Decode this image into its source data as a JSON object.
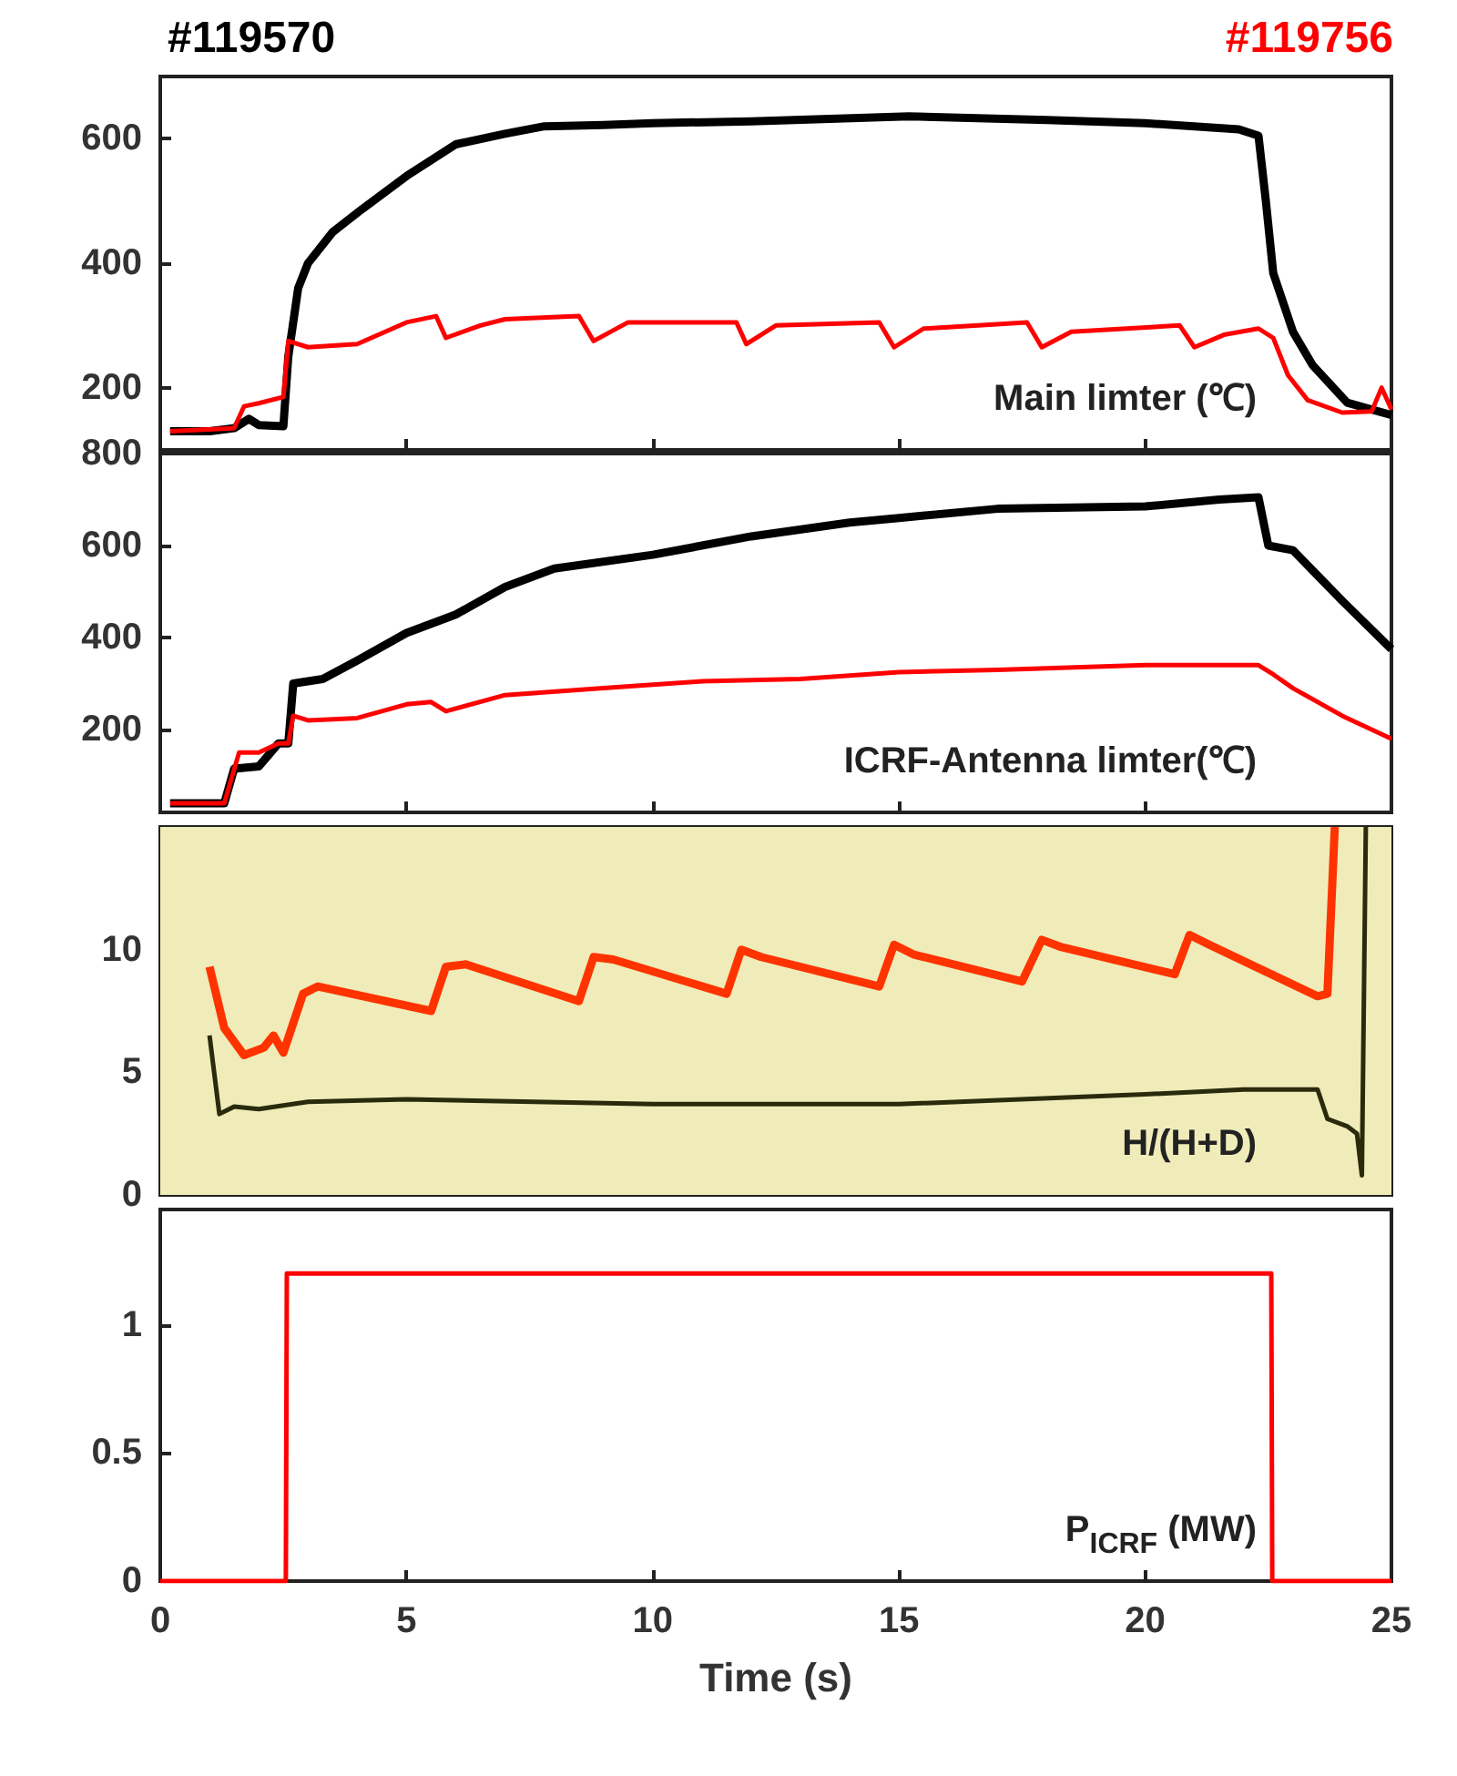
{
  "chart_data": [
    {
      "type": "line",
      "xlim": [
        0,
        25
      ],
      "xticks": [
        0,
        5,
        10,
        15,
        20,
        25
      ],
      "ylim": [
        100,
        700
      ],
      "yticks": [
        200,
        400,
        600
      ],
      "tick_labels": "y",
      "legend": "top",
      "annotations": [
        "Main limter (℃)"
      ],
      "series": [
        {
          "name": "#119570",
          "color": "#000000",
          "x": [
            0.2,
            1.0,
            1.5,
            1.8,
            2.0,
            2.5,
            2.6,
            2.8,
            3.0,
            3.5,
            4.1,
            5,
            6,
            7,
            7.8,
            9,
            10,
            12,
            15.2,
            18,
            20,
            21.9,
            22.3,
            22.45,
            22.6,
            23,
            23.4,
            24.1,
            25
          ],
          "values": [
            130,
            130,
            135,
            150,
            140,
            138,
            250,
            360,
            400,
            450,
            487,
            540,
            591,
            608,
            620,
            622,
            625,
            628,
            636,
            630,
            625,
            615,
            605,
            500,
            384,
            290,
            236,
            176,
            156
          ]
        },
        {
          "name": "#119756",
          "color": "#ff0000",
          "x": [
            0.2,
            1.5,
            1.7,
            2.0,
            2.5,
            2.6,
            3,
            4,
            5,
            5.6,
            5.8,
            6.5,
            7,
            8.5,
            8.8,
            9.5,
            11.7,
            11.9,
            12.5,
            14.6,
            14.9,
            15.5,
            17.6,
            17.9,
            18.5,
            20.7,
            21,
            21.6,
            22.3,
            22.6,
            22.9,
            23.3,
            24,
            24.6,
            24.8,
            25
          ],
          "values": [
            130,
            135,
            170,
            175,
            185,
            275,
            265,
            270,
            305,
            315,
            280,
            300,
            310,
            315,
            275,
            305,
            305,
            270,
            300,
            305,
            265,
            295,
            305,
            265,
            290,
            300,
            265,
            285,
            295,
            280,
            220,
            180,
            160,
            162,
            200,
            165
          ]
        }
      ]
    },
    {
      "type": "line",
      "xlim": [
        0,
        25
      ],
      "xticks": [
        0,
        5,
        10,
        15,
        20,
        25
      ],
      "ylim": [
        20,
        800
      ],
      "yticks": [
        200,
        400,
        600,
        800
      ],
      "tick_labels": "y",
      "annotations": [
        "ICRF-Antenna limter(℃)"
      ],
      "series": [
        {
          "color": "#000000",
          "x": [
            0.2,
            1.3,
            1.5,
            2.0,
            2.4,
            2.6,
            2.7,
            3.3,
            4,
            5,
            6,
            7,
            8,
            10,
            12,
            14,
            15,
            17,
            20,
            21.5,
            22.3,
            22.5,
            23,
            24,
            25
          ],
          "values": [
            40,
            40,
            115,
            120,
            170,
            170,
            300,
            310,
            350,
            410,
            450,
            510,
            550,
            580,
            620,
            650,
            660,
            680,
            685,
            700,
            705,
            600,
            590,
            480,
            375
          ]
        },
        {
          "color": "#ff0000",
          "x": [
            0.2,
            1.3,
            1.6,
            2.0,
            2.4,
            2.6,
            2.7,
            3,
            4,
            5,
            5.5,
            5.8,
            7,
            9,
            11,
            13,
            15,
            17,
            20,
            22.3,
            22.6,
            23,
            24,
            25
          ],
          "values": [
            40,
            40,
            150,
            150,
            170,
            170,
            230,
            220,
            225,
            255,
            260,
            240,
            275,
            290,
            305,
            310,
            325,
            330,
            340,
            340,
            320,
            290,
            230,
            180
          ]
        }
      ]
    },
    {
      "type": "line",
      "xlim": [
        0,
        25
      ],
      "xticks": [
        0,
        5,
        10,
        15,
        20,
        25
      ],
      "ylim": [
        0,
        15
      ],
      "yticks": [
        0,
        5,
        10
      ],
      "tick_labels": "y",
      "annotations": [
        "H/(H+D)"
      ],
      "bands": [
        {
          "axis": "y",
          "from": 0,
          "to": 15,
          "color": "#efecb9"
        }
      ],
      "series": [
        {
          "color": "#ff3300",
          "x": [
            1.0,
            1.3,
            1.7,
            2.1,
            2.3,
            2.5,
            2.9,
            3.2,
            5.5,
            5.8,
            6.2,
            8.5,
            8.8,
            9.2,
            11.5,
            11.8,
            12.2,
            14.6,
            14.9,
            15.3,
            17.5,
            17.9,
            18.3,
            20.6,
            20.9,
            21.3,
            23.5,
            23.7,
            23.85
          ],
          "values": [
            9.3,
            6.8,
            5.7,
            6.0,
            6.5,
            5.8,
            8.2,
            8.5,
            7.5,
            9.3,
            9.4,
            7.9,
            9.7,
            9.6,
            8.2,
            10.0,
            9.7,
            8.5,
            10.2,
            9.8,
            8.7,
            10.4,
            10.1,
            9.0,
            10.6,
            10.2,
            8.1,
            8.2,
            15
          ]
        },
        {
          "color": "#2a2a0c",
          "x": [
            1.0,
            1.2,
            1.5,
            2.0,
            3,
            5,
            10,
            15,
            20,
            22,
            23.5,
            23.7,
            24.1,
            24.3,
            24.4,
            24.48
          ],
          "values": [
            6.5,
            3.3,
            3.6,
            3.5,
            3.8,
            3.9,
            3.7,
            3.7,
            4.1,
            4.3,
            4.3,
            3.1,
            2.8,
            2.5,
            0.8,
            15
          ]
        }
      ]
    },
    {
      "type": "line",
      "xlim": [
        0,
        25
      ],
      "xticks": [
        0,
        5,
        10,
        15,
        20,
        25
      ],
      "ylim": [
        0,
        1.45
      ],
      "yticks": [
        0,
        0.5,
        1
      ],
      "xlabel": "Time (s)",
      "annotations": [
        "P$_{ICRF}$ (MW)"
      ],
      "series": [
        {
          "color": "#ff0000",
          "x": [
            0,
            2.55,
            2.57,
            22.56,
            22.58,
            25
          ],
          "values": [
            0,
            0,
            1.2,
            1.2,
            0,
            0
          ]
        }
      ]
    }
  ]
}
